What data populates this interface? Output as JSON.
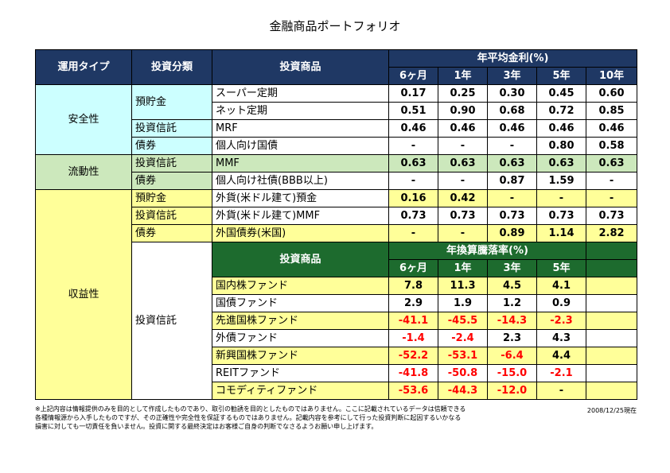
{
  "title": "金融商品ポートフォリオ",
  "header": {
    "type": "運用タイプ",
    "category": "投資分類",
    "product": "投資商品",
    "rate_title": "年平均金利(%)",
    "periods": [
      "6ヶ月",
      "1年",
      "3年",
      "5年",
      "10年"
    ]
  },
  "safety": {
    "type": "安全性",
    "yochokin": "預貯金",
    "toushin": "投資信託",
    "saiken": "債券",
    "super_teiki": {
      "name": "スーパー定期",
      "v": [
        "0.17",
        "0.25",
        "0.30",
        "0.45",
        "0.60"
      ]
    },
    "net_teiki": {
      "name": "ネット定期",
      "v": [
        "0.51",
        "0.90",
        "0.68",
        "0.72",
        "0.85"
      ]
    },
    "mrf": {
      "name": "MRF",
      "v": [
        "0.46",
        "0.46",
        "0.46",
        "0.46",
        "0.46"
      ]
    },
    "kokusai": {
      "name": "個人向け国債",
      "v": [
        "-",
        "-",
        "-",
        "0.80",
        "0.58"
      ]
    }
  },
  "liquidity": {
    "type": "流動性",
    "toushin": "投資信託",
    "saiken": "債券",
    "mmf": {
      "name": "MMF",
      "v": [
        "0.63",
        "0.63",
        "0.63",
        "0.63",
        "0.63"
      ]
    },
    "shasai": {
      "name": "個人向け社債(BBB以上)",
      "v": [
        "-",
        "-",
        "0.87",
        "1.59",
        "-"
      ]
    }
  },
  "profit": {
    "type": "収益性",
    "yochokin": "預貯金",
    "toushin": "投資信託",
    "saiken": "債券",
    "toushin2": "投資信託",
    "gaika_yokin": {
      "name": "外貨(米ドル建て)預金",
      "v": [
        "0.16",
        "0.42",
        "-",
        "-",
        "-"
      ]
    },
    "gaika_mmf": {
      "name": "外貨(米ドル建て)MMF",
      "v": [
        "0.73",
        "0.73",
        "0.73",
        "0.73",
        "0.73"
      ]
    },
    "gaikoku_saiken": {
      "name": "外国債券(米国)",
      "v": [
        "-",
        "-",
        "0.89",
        "1.14",
        "2.82"
      ]
    },
    "fund_header": {
      "product": "投資商品",
      "title": "年換算騰落率(%)",
      "periods": [
        "6ヶ月",
        "1年",
        "3年",
        "5年"
      ]
    },
    "funds": [
      {
        "name": "国内株ファンド",
        "v": [
          "7.8",
          "11.3",
          "4.5",
          "4.1"
        ]
      },
      {
        "name": "国債ファンド",
        "v": [
          "2.9",
          "1.9",
          "1.2",
          "0.9"
        ]
      },
      {
        "name": "先進国株ファンド",
        "v": [
          "-41.1",
          "-45.5",
          "-14.3",
          "-2.3"
        ]
      },
      {
        "name": "外債ファンド",
        "v": [
          "-1.4",
          "-2.4",
          "2.3",
          "4.3"
        ]
      },
      {
        "name": "新興国株ファンド",
        "v": [
          "-52.2",
          "-53.1",
          "-6.4",
          "4.4"
        ]
      },
      {
        "name": "REITファンド",
        "v": [
          "-41.8",
          "-50.8",
          "-15.0",
          "-2.1"
        ]
      },
      {
        "name": "コモディティファンド",
        "v": [
          "-53.6",
          "-44.3",
          "-12.0",
          "-"
        ]
      }
    ]
  },
  "footer": {
    "note1": "※上記内容は情報提供のみを目的として作成したものであり、取引の勧誘を目的としたものではありません。ここに記載されているデータは信頼できる",
    "note2": "各種情報源から入手したものですが、その正確性や完全性を保証するものではありません。記載内容を参考にして行った投資判断に起因するいかなる",
    "note3": "損害に対しても一切責任を負いません。投資に関する最終決定はお客様ご自身の判断でなさるようお願い申し上げます。",
    "date": "2008/12/25現在"
  }
}
